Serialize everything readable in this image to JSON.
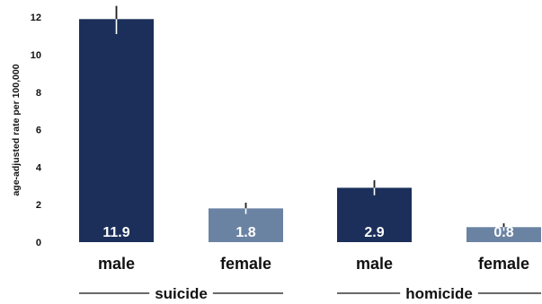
{
  "chart_data": {
    "type": "bar",
    "title": "",
    "ylabel": "age-adjusted rate per 100,000",
    "xlabel": "",
    "ylim": [
      0,
      12.5
    ],
    "yticks": [
      0,
      2,
      4,
      6,
      8,
      10,
      12
    ],
    "grid": false,
    "legend": "none",
    "groups": [
      {
        "label": "suicide",
        "bars": [
          {
            "category": "male",
            "value": 11.9,
            "data_label": "11.9",
            "error_low": 11.1,
            "error_high": 12.6,
            "color": "#1b2f5a"
          },
          {
            "category": "female",
            "value": 1.8,
            "data_label": "1.8",
            "error_low": 1.5,
            "error_high": 2.1,
            "color": "#6b83a3"
          }
        ]
      },
      {
        "label": "homicide",
        "bars": [
          {
            "category": "male",
            "value": 2.9,
            "data_label": "2.9",
            "error_low": 2.5,
            "error_high": 3.3,
            "color": "#1b2f5a"
          },
          {
            "category": "female",
            "value": 0.8,
            "data_label": "0.8",
            "error_low": 0.6,
            "error_high": 1.0,
            "color": "#6b83a3"
          }
        ]
      }
    ]
  }
}
